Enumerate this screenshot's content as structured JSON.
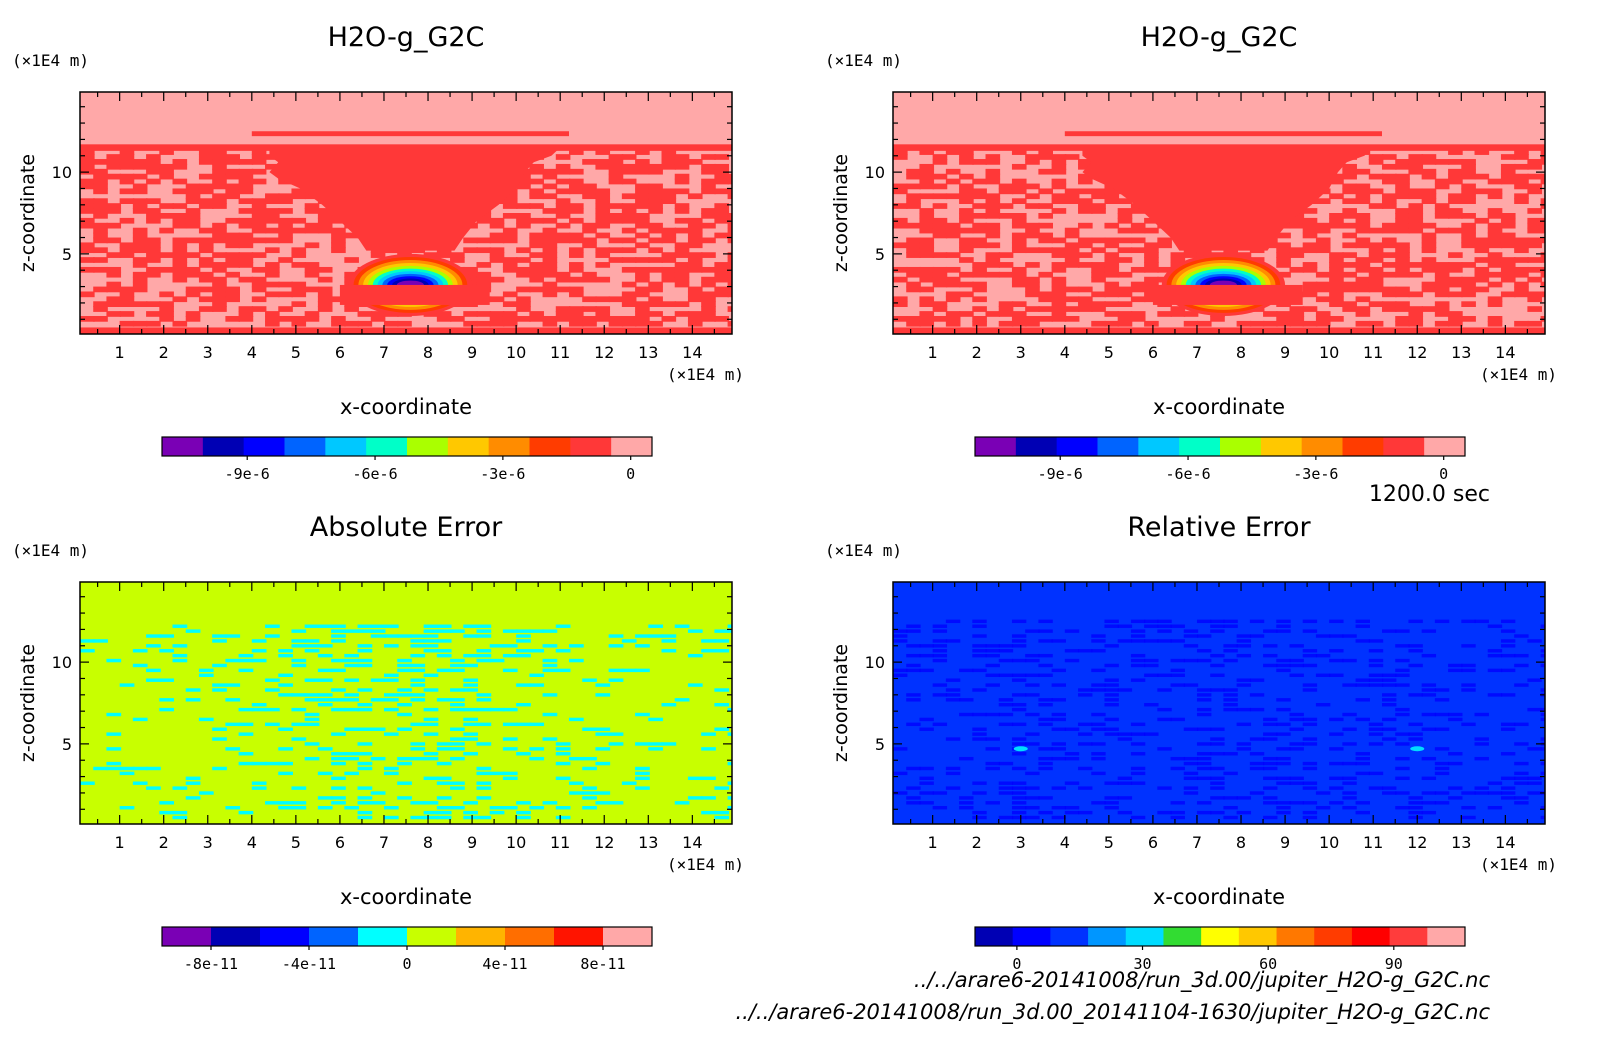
{
  "time_label": "1200.0 sec",
  "files": [
    "../../arare6-20141008/run_3d.00/jupiter_H2O-g_G2C.nc",
    "../../arare6-20141008/run_3d.00_20141104-1630/jupiter_H2O-g_G2C.nc"
  ],
  "chart_data": [
    {
      "type": "heatmap",
      "title": "H2O-g_G2C",
      "xlabel": "x-coordinate",
      "ylabel": "z-coordinate",
      "x_unit": "(×1E4 m)",
      "y_unit": "(×1E4 m)",
      "xlim": [
        0.1,
        14.9
      ],
      "ylim": [
        0.1,
        14.9
      ],
      "x_ticks": [
        1,
        2,
        3,
        4,
        5,
        6,
        7,
        8,
        9,
        10,
        11,
        12,
        13,
        14
      ],
      "y_ticks": [
        5,
        10
      ],
      "field": "cloud",
      "colorbar": {
        "colors": [
          "#7a00b5",
          "#0000b4",
          "#0000ff",
          "#0064ff",
          "#00c8ff",
          "#00ffc8",
          "#aaff00",
          "#ffc800",
          "#ff8c00",
          "#ff3c00",
          "#ff3838",
          "#ffa8a8"
        ],
        "range": [
          -1.1e-05,
          5e-07
        ],
        "tick_values": [
          -9e-06,
          -6e-06,
          -3e-06,
          0
        ],
        "tick_labels": [
          "-9e-6",
          "-6e-6",
          "-3e-6",
          "0"
        ]
      }
    },
    {
      "type": "heatmap",
      "title": "H2O-g_G2C",
      "xlabel": "x-coordinate",
      "ylabel": "z-coordinate",
      "x_unit": "(×1E4 m)",
      "y_unit": "(×1E4 m)",
      "xlim": [
        0.1,
        14.9
      ],
      "ylim": [
        0.1,
        14.9
      ],
      "x_ticks": [
        1,
        2,
        3,
        4,
        5,
        6,
        7,
        8,
        9,
        10,
        11,
        12,
        13,
        14
      ],
      "y_ticks": [
        5,
        10
      ],
      "field": "cloud",
      "colorbar": {
        "colors": [
          "#7a00b5",
          "#0000b4",
          "#0000ff",
          "#0064ff",
          "#00c8ff",
          "#00ffc8",
          "#aaff00",
          "#ffc800",
          "#ff8c00",
          "#ff3c00",
          "#ff3838",
          "#ffa8a8"
        ],
        "range": [
          -1.1e-05,
          5e-07
        ],
        "tick_values": [
          -9e-06,
          -6e-06,
          -3e-06,
          0
        ],
        "tick_labels": [
          "-9e-6",
          "-6e-6",
          "-3e-6",
          "0"
        ]
      }
    },
    {
      "type": "heatmap",
      "title": "Absolute Error",
      "xlabel": "x-coordinate",
      "ylabel": "z-coordinate",
      "x_unit": "(×1E4 m)",
      "y_unit": "(×1E4 m)",
      "xlim": [
        0.1,
        14.9
      ],
      "ylim": [
        0.1,
        14.9
      ],
      "x_ticks": [
        1,
        2,
        3,
        4,
        5,
        6,
        7,
        8,
        9,
        10,
        11,
        12,
        13,
        14
      ],
      "y_ticks": [
        5,
        10
      ],
      "field": "abserr",
      "colorbar": {
        "colors": [
          "#7a00b5",
          "#0000b4",
          "#0000ff",
          "#0064ff",
          "#00ffff",
          "#c8ff00",
          "#ffb400",
          "#ff6e00",
          "#ff1400",
          "#ffa8a8"
        ],
        "range": [
          -1e-10,
          1e-10
        ],
        "tick_values": [
          -8e-11,
          -4e-11,
          0,
          4e-11,
          8e-11
        ],
        "tick_labels": [
          "-8e-11",
          "-4e-11",
          "0",
          "4e-11",
          "8e-11"
        ]
      }
    },
    {
      "type": "heatmap",
      "title": "Relative Error",
      "xlabel": "x-coordinate",
      "ylabel": "z-coordinate",
      "x_unit": "(×1E4 m)",
      "y_unit": "(×1E4 m)",
      "xlim": [
        0.1,
        14.9
      ],
      "ylim": [
        0.1,
        14.9
      ],
      "x_ticks": [
        1,
        2,
        3,
        4,
        5,
        6,
        7,
        8,
        9,
        10,
        11,
        12,
        13,
        14
      ],
      "y_ticks": [
        5,
        10
      ],
      "field": "relerr",
      "colorbar": {
        "colors": [
          "#0000b4",
          "#0000ff",
          "#0032ff",
          "#0096ff",
          "#00dcff",
          "#32dc32",
          "#ffff00",
          "#ffc800",
          "#ff7800",
          "#ff3c00",
          "#ff0000",
          "#ff3c3c",
          "#ffa8a8"
        ],
        "range": [
          -10,
          107
        ],
        "tick_values": [
          0,
          30,
          60,
          90
        ],
        "tick_labels": [
          "0",
          "30",
          "60",
          "90"
        ]
      }
    }
  ]
}
